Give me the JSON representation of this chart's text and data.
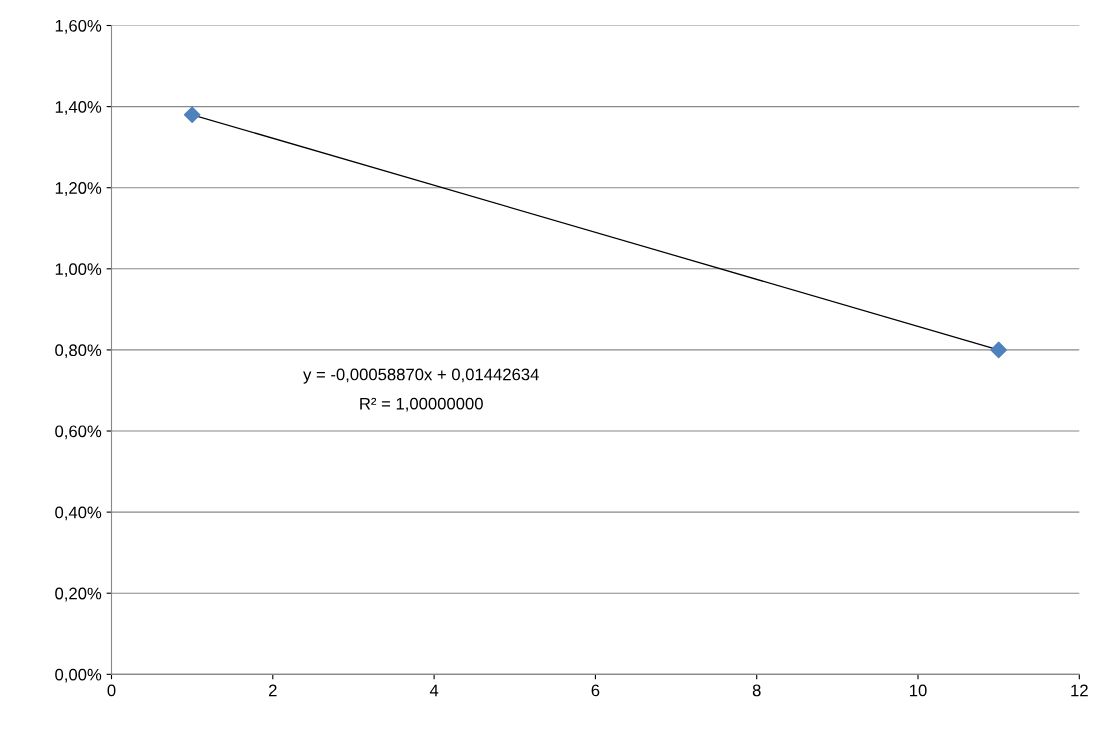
{
  "chart_data": {
    "type": "scatter",
    "x": [
      1,
      11
    ],
    "series": [
      {
        "color": "#4f81bd",
        "marker": "diamond",
        "values": [
          1.38,
          0.8
        ]
      },
      {
        "type": "line",
        "color": "#000000",
        "marker": "none",
        "values": [
          1.38,
          0.8
        ]
      }
    ],
    "annotations": [
      "y = -0,00058870x + 0,01442634",
      "R² = 1,00000000"
    ],
    "xlim": [
      0,
      12
    ],
    "xticks": [
      0,
      2,
      4,
      6,
      8,
      10,
      12
    ],
    "ylim": [
      0,
      1.6
    ],
    "yticks": [
      {
        "value": 0,
        "label": "0,00%"
      },
      {
        "value": 0.2,
        "label": "0,20%"
      },
      {
        "value": 0.4,
        "label": "0,40%"
      },
      {
        "value": 0.6,
        "label": "0,60%"
      },
      {
        "value": 0.8,
        "label": "0,80%"
      },
      {
        "value": 1.0,
        "label": "1,00%"
      },
      {
        "value": 1.2,
        "label": "1,20%"
      },
      {
        "value": 1.4,
        "label": "1,40%"
      },
      {
        "value": 1.6,
        "label": "1,60%"
      }
    ],
    "grid": "y",
    "legend": false
  }
}
